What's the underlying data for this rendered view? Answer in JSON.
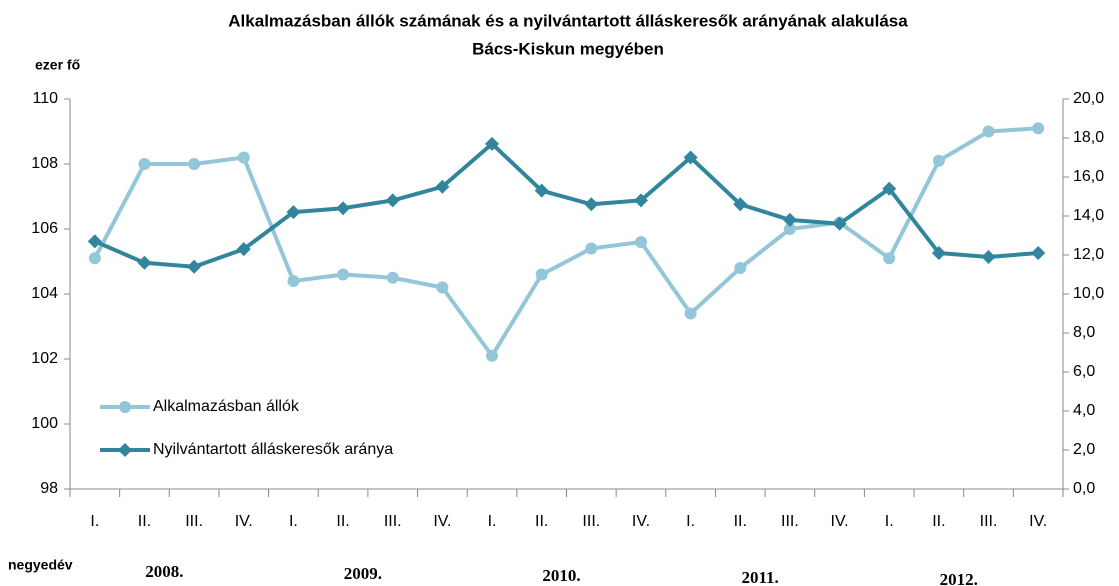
{
  "chart_data": {
    "type": "line",
    "title": [
      "Alkalmazásban állók számának és a nyilvántartott álláskeresők arányának alakulása",
      "Bács-Kiskun megyében"
    ],
    "y_label": "ezer fő",
    "x_label": "negyedév",
    "categories": [
      "I.",
      "II.",
      "III.",
      "IV.",
      "I.",
      "II.",
      "III.",
      "IV.",
      "I.",
      "II.",
      "III.",
      "IV.",
      "I.",
      "II.",
      "III.",
      "IV.",
      "I.",
      "II.",
      "III.",
      "IV."
    ],
    "years": [
      "2008.",
      "2009.",
      "2010.",
      "2011.",
      "2012."
    ],
    "series": [
      {
        "name": "Alkalmazásban állók",
        "color": "#93c6d8",
        "marker": "circle",
        "axis": "y",
        "values": [
          105.1,
          108.0,
          108.0,
          108.2,
          104.4,
          104.6,
          104.5,
          104.2,
          102.1,
          104.6,
          105.4,
          105.6,
          103.4,
          104.8,
          106.0,
          106.2,
          105.1,
          108.1,
          109.0,
          109.1
        ]
      },
      {
        "name": "Nyilvántartott álláskeresők aránya",
        "color": "#31859c",
        "marker": "diamond",
        "axis": "y2",
        "values": [
          12.7,
          11.6,
          11.4,
          12.3,
          14.2,
          14.4,
          14.8,
          15.5,
          17.7,
          15.3,
          14.6,
          14.8,
          17.0,
          14.6,
          13.8,
          13.6,
          15.4,
          12.1,
          11.9,
          12.1
        ]
      }
    ],
    "ylim": [
      98,
      110
    ],
    "yticks": [
      98,
      100,
      102,
      104,
      106,
      108,
      110
    ],
    "y2lim": [
      0,
      20
    ],
    "y2ticks": [
      {
        "value": 0,
        "label": "0,0"
      },
      {
        "value": 2,
        "label": "2,0"
      },
      {
        "value": 4,
        "label": "4,0"
      },
      {
        "value": 6,
        "label": "6,0"
      },
      {
        "value": 8,
        "label": "8,0"
      },
      {
        "value": 10,
        "label": "10,0"
      },
      {
        "value": 12,
        "label": "12,0"
      },
      {
        "value": 14,
        "label": "14,0"
      },
      {
        "value": 16,
        "label": "16,0"
      },
      {
        "value": 18,
        "label": "18,0"
      },
      {
        "value": 20,
        "label": "20,0"
      }
    ],
    "legend": "left"
  }
}
